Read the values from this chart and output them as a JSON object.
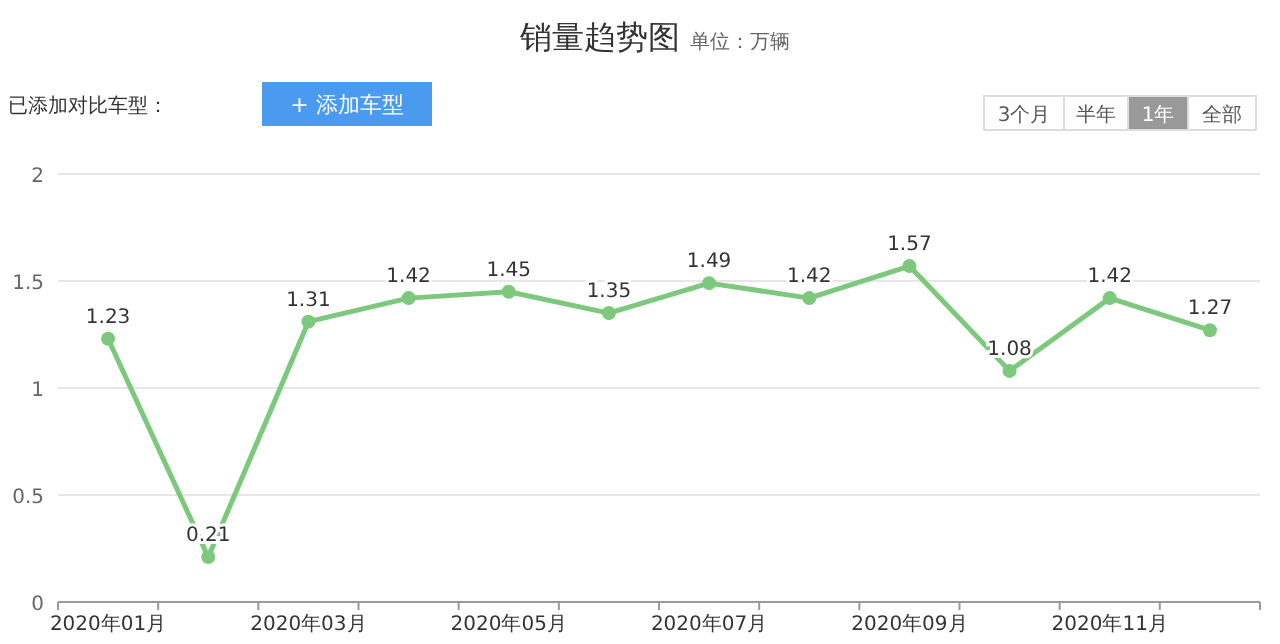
{
  "chart_data": {
    "type": "line",
    "title": "销量趋势图",
    "subtitle": "单位：万辆",
    "annotations": [
      "已添加对比车型：",
      "+ 添加车型",
      "3个月",
      "半年",
      "1年",
      "全部"
    ],
    "categories": [
      "2020年01月",
      null,
      "2020年03月",
      null,
      "2020年05月",
      null,
      "2020年07月",
      null,
      "2020年09月",
      null,
      "2020年11月",
      null
    ],
    "series": [
      {
        "color": "#7cc87c",
        "values": [
          1.23,
          0.21,
          1.31,
          1.42,
          1.45,
          1.35,
          1.49,
          1.42,
          1.57,
          1.08,
          1.42,
          1.27
        ]
      }
    ],
    "ylim": [
      0,
      2
    ],
    "yticks": [
      0,
      0.5,
      1,
      1.5,
      2
    ],
    "grid": "y",
    "data_labels": true,
    "marker": "circle"
  }
}
